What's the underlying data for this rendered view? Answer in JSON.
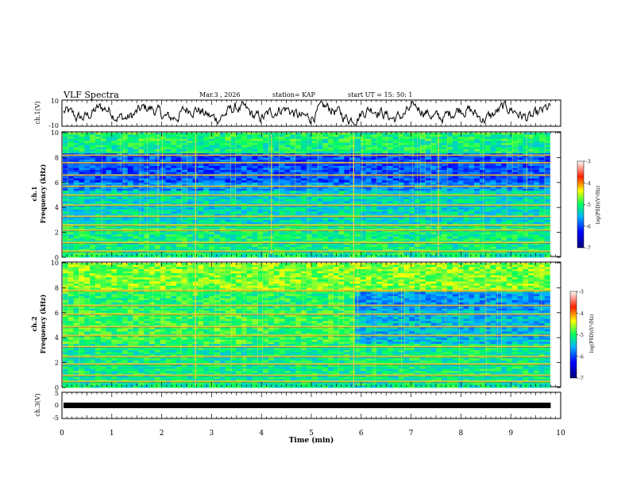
{
  "header": {
    "title": "VLF Spectra",
    "date": "Mar.3  , 2026",
    "station": "station= KAP",
    "start": "start  UT  =   15: 50: 1"
  },
  "chart_data": [
    {
      "type": "line",
      "name": "ch1-voltage",
      "ylabel": "ch.1(V)",
      "ylim": [
        -10,
        10
      ],
      "yticks": [
        "10",
        "-10"
      ],
      "approx_range": [
        -9,
        9
      ]
    },
    {
      "type": "heatmap",
      "name": "ch1-spectrogram",
      "ylabel_line1": "ch.1",
      "ylabel_line2": "Frequency  (kHz)",
      "ylim": [
        0,
        10
      ],
      "yticks": [
        "0",
        "2",
        "4",
        "6",
        "8",
        "10"
      ],
      "colorbar": {
        "label": "log(PSD)(V²/Hz)",
        "ticks": [
          "-3",
          "-4",
          "-5",
          "-6",
          "-7"
        ],
        "range": [
          -7,
          -3
        ]
      },
      "bands_khz": [
        0.5,
        1.2,
        2.2,
        2.6,
        3.3,
        4.2,
        5.0,
        5.7,
        6.6,
        7.6,
        8.2
      ],
      "transient_times_min": [
        2.68,
        4.2,
        5.85,
        7.55
      ]
    },
    {
      "type": "heatmap",
      "name": "ch2-spectrogram",
      "ylabel_line1": "ch.2",
      "ylabel_line2": "Frequency  (kHz)",
      "ylim": [
        0,
        10
      ],
      "yticks": [
        "0",
        "2",
        "4",
        "6",
        "8",
        "10"
      ],
      "colorbar": {
        "label": "log(PSD)(V²/Hz)",
        "ticks": [
          "-3",
          "-4",
          "-5",
          "-6",
          "-7"
        ],
        "range": [
          -7,
          -3
        ]
      },
      "bands_khz": [
        0.5,
        1.0,
        1.9,
        2.5,
        3.3,
        4.2,
        4.9,
        5.9,
        6.6,
        7.8
      ],
      "transition_time_min": 5.85
    },
    {
      "type": "line",
      "name": "ch3-voltage",
      "ylabel": "ch.3(V)",
      "ylim": [
        -5,
        5
      ],
      "yticks": [
        "5",
        "0",
        "-5"
      ],
      "constant_value": 0
    }
  ],
  "xaxis": {
    "label": "Time  (min)",
    "ticks": [
      "0",
      "1",
      "2",
      "3",
      "4",
      "5",
      "6",
      "7",
      "8",
      "9",
      "10"
    ],
    "xlim": [
      0,
      10
    ],
    "data_end_min": 9.8
  }
}
